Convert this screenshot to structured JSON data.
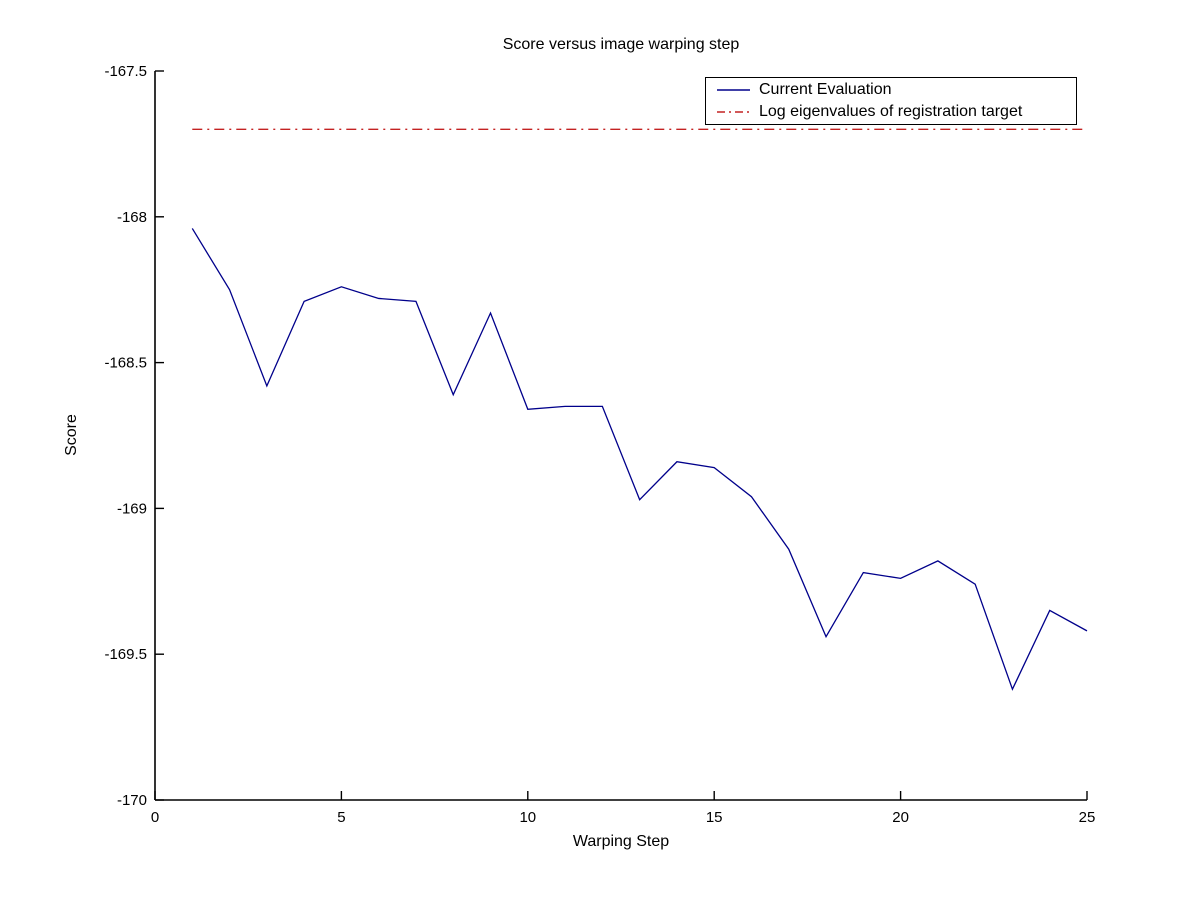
{
  "chart_data": {
    "type": "line",
    "title": "Score versus image warping step",
    "xlabel": "Warping Step",
    "ylabel": "Score",
    "xlim": [
      0,
      25
    ],
    "ylim": [
      -170,
      -167.5
    ],
    "x_ticks": [
      0,
      5,
      10,
      15,
      20,
      25
    ],
    "x_tick_labels": [
      "0",
      "5",
      "10",
      "15",
      "20",
      "25"
    ],
    "y_ticks": [
      -170,
      -169.5,
      -169,
      -168.5,
      -168,
      -167.5
    ],
    "y_tick_labels": [
      "-170",
      "-169.5",
      "-169",
      "-168.5",
      "-168",
      "-167.5"
    ],
    "grid": false,
    "legend_position": "top-right",
    "x": [
      1,
      2,
      3,
      4,
      5,
      6,
      7,
      8,
      9,
      10,
      11,
      12,
      13,
      14,
      15,
      16,
      17,
      18,
      19,
      20,
      21,
      22,
      23,
      24,
      25
    ],
    "series": [
      {
        "name": "Current Evaluation",
        "color": "#00008B",
        "style": "solid",
        "values": [
          -168.04,
          -168.25,
          -168.58,
          -168.29,
          -168.24,
          -168.28,
          -168.29,
          -168.61,
          -168.33,
          -168.66,
          -168.65,
          -168.65,
          -168.97,
          -168.84,
          -168.86,
          -168.96,
          -169.14,
          -169.44,
          -169.22,
          -169.24,
          -169.18,
          -169.26,
          -169.62,
          -169.35,
          -169.42
        ]
      },
      {
        "name": "Log eigenvalues of registration target",
        "color": "#C42222",
        "style": "dashdot",
        "constant": -167.7,
        "x_range": [
          1,
          25
        ]
      }
    ]
  }
}
